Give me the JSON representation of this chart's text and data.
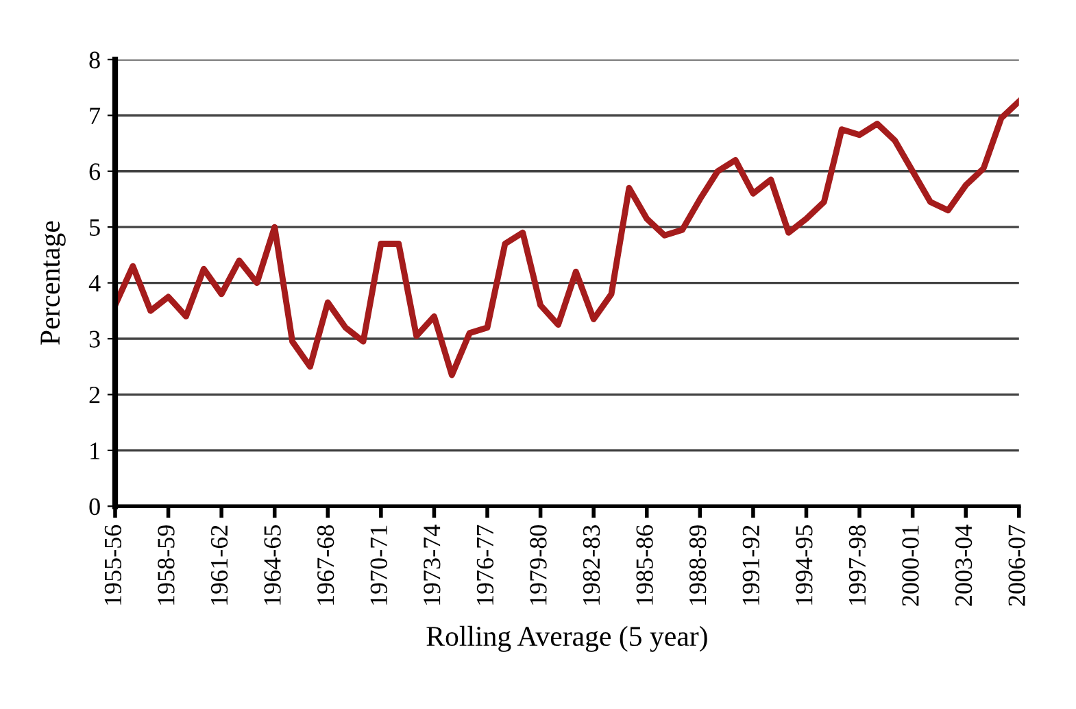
{
  "chart_data": {
    "type": "line",
    "xlabel": "Rolling Average (5 year)",
    "ylabel": "Percentage",
    "categories": [
      "1955-56",
      null,
      null,
      "1958-59",
      null,
      null,
      "1961-62",
      null,
      null,
      "1964-65",
      null,
      null,
      "1967-68",
      null,
      null,
      "1970-71",
      null,
      null,
      "1973-74",
      null,
      null,
      "1976-77",
      null,
      null,
      "1979-80",
      null,
      null,
      "1982-83",
      null,
      null,
      "1985-86",
      null,
      null,
      "1988-89",
      null,
      null,
      "1991-92",
      null,
      null,
      "1994-95",
      null,
      null,
      "1997-98",
      null,
      null,
      "2000-01",
      null,
      null,
      "2003-04",
      null,
      null,
      "2006-07"
    ],
    "series": [
      {
        "color": "#a51c1c",
        "values": [
          3.6,
          4.3,
          3.5,
          3.75,
          3.4,
          4.25,
          3.8,
          4.4,
          4.0,
          5.0,
          2.95,
          2.5,
          3.65,
          3.2,
          2.95,
          4.7,
          4.7,
          3.05,
          3.4,
          2.35,
          3.1,
          3.2,
          4.7,
          4.9,
          3.6,
          3.25,
          4.2,
          3.35,
          3.8,
          5.7,
          5.15,
          4.85,
          4.95,
          5.5,
          6.0,
          6.2,
          5.6,
          5.85,
          4.9,
          5.15,
          5.45,
          6.75,
          6.65,
          6.85,
          6.55,
          6.0,
          5.45,
          5.3,
          5.75,
          6.05,
          6.95,
          7.25
        ]
      }
    ],
    "ylim": [
      0,
      8
    ],
    "yticks": [
      0,
      1,
      2,
      3,
      4,
      5,
      6,
      7,
      8
    ],
    "grid": "y",
    "marker": "none",
    "line_style": "solid"
  }
}
